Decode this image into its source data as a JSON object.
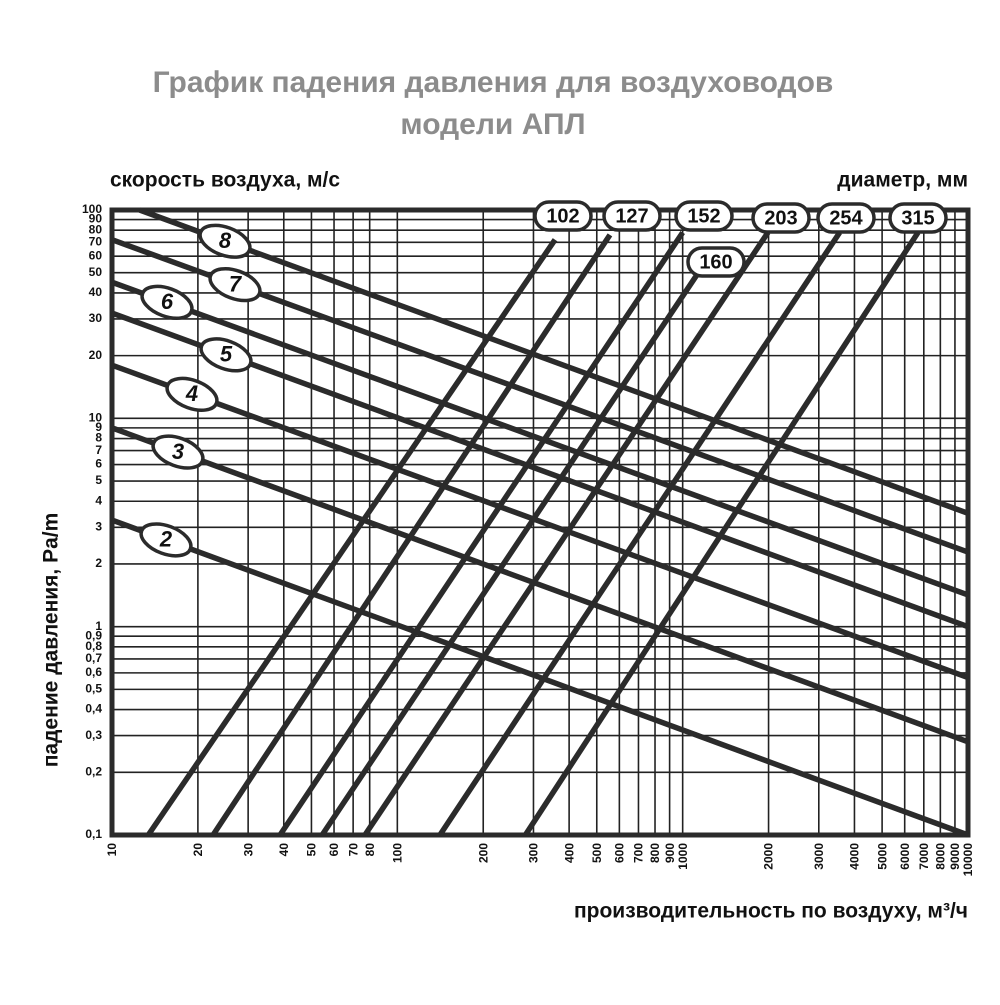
{
  "chart_data": {
    "type": "line",
    "title": "График падения давления для воздуховодов",
    "subtitle": "модели АПЛ",
    "velocity_label": "скорость воздуха, м/с",
    "diameter_label": "диаметр, мм",
    "x_label": "производительность по воздуху, м³/ч",
    "y_label": "падение давления, Pa/m",
    "log_x": true,
    "log_y": true,
    "grid": true,
    "color": "#2b2b2b",
    "xlim": [
      10,
      10000
    ],
    "ylim": [
      0.1,
      100
    ],
    "xticks": [
      10,
      20,
      30,
      40,
      50,
      60,
      70,
      80,
      100,
      200,
      300,
      400,
      500,
      600,
      700,
      800,
      900,
      1000,
      2000,
      3000,
      4000,
      5000,
      6000,
      7000,
      8000,
      9000,
      10000
    ],
    "yticks": [
      {
        "value": 0.1,
        "label": "0,1"
      },
      {
        "value": 0.2,
        "label": "0,2"
      },
      {
        "value": 0.3,
        "label": "0,3"
      },
      {
        "value": 0.4,
        "label": "0,4"
      },
      {
        "value": 0.5,
        "label": "0,5"
      },
      {
        "value": 0.6,
        "label": "0,6"
      },
      {
        "value": 0.7,
        "label": "0,7"
      },
      {
        "value": 0.8,
        "label": "0,8"
      },
      {
        "value": 0.9,
        "label": "0,9"
      },
      1,
      2,
      3,
      4,
      5,
      6,
      7,
      8,
      9,
      10,
      20,
      30,
      40,
      50,
      60,
      70,
      80,
      90,
      100
    ],
    "velocity_series": [
      {
        "name": "8",
        "x": [
          12.5,
          10000
        ],
        "values": [
          100,
          3.5
        ]
      },
      {
        "name": "7",
        "x": [
          10,
          10000
        ],
        "values": [
          72,
          2.28
        ]
      },
      {
        "name": "6",
        "x": [
          10,
          10000
        ],
        "values": [
          45,
          1.42
        ]
      },
      {
        "name": "5",
        "x": [
          10,
          10000
        ],
        "values": [
          32,
          1.0
        ]
      },
      {
        "name": "4",
        "x": [
          10,
          10000
        ],
        "values": [
          18,
          0.57
        ]
      },
      {
        "name": "3",
        "x": [
          10,
          10000
        ],
        "values": [
          9,
          0.28
        ]
      },
      {
        "name": "2",
        "x": [
          10,
          10000
        ],
        "values": [
          3.25,
          0.1
        ]
      }
    ],
    "diameter_series": [
      {
        "name": "102",
        "x": [
          13.4,
          357
        ],
        "values": [
          0.1,
          72
        ]
      },
      {
        "name": "127",
        "x": [
          22.6,
          556
        ],
        "values": [
          0.1,
          76
        ]
      },
      {
        "name": "152",
        "x": [
          38.8,
          1000
        ],
        "values": [
          0.1,
          78
        ]
      },
      {
        "name": "160",
        "x": [
          54.5,
          1151
        ],
        "values": [
          0.1,
          51.5
        ]
      },
      {
        "name": "203",
        "x": [
          77,
          1990
        ],
        "values": [
          0.1,
          78
        ]
      },
      {
        "name": "254",
        "x": [
          141,
          3550
        ],
        "values": [
          0.1,
          78
        ]
      },
      {
        "name": "315",
        "x": [
          281,
          6680
        ],
        "values": [
          0.1,
          78
        ]
      }
    ]
  }
}
